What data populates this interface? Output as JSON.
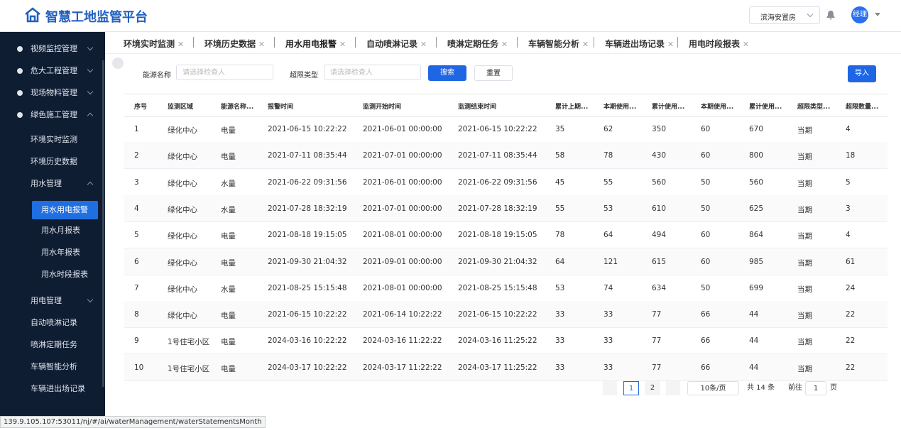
{
  "header": {
    "title": "智慧工地监管平台",
    "project": "滨海安置房",
    "user": "经理"
  },
  "sidebar": {
    "menu": [
      {
        "label": "视频监控管理"
      },
      {
        "label": "危大工程管理"
      },
      {
        "label": "现场物料管理"
      },
      {
        "label": "绿色施工管理",
        "children": [
          {
            "label": "环境实时监测"
          },
          {
            "label": "环境历史数据"
          },
          {
            "label": "用水管理",
            "children": [
              {
                "label": "用水用电报警"
              },
              {
                "label": "用水月报表"
              },
              {
                "label": "用水年报表"
              },
              {
                "label": "用水时段报表"
              }
            ]
          },
          {
            "label": "用电管理"
          },
          {
            "label": "自动喷淋记录"
          },
          {
            "label": "喷淋定期任务"
          },
          {
            "label": "车辆智能分析"
          },
          {
            "label": "车辆进出场记录"
          }
        ]
      }
    ]
  },
  "tabs": [
    "环境实时监测",
    "环境历史数据",
    "用水用电报警",
    "自动喷淋记录",
    "喷淋定期任务",
    "车辆智能分析",
    "车辆进出场记录",
    "用电时段报表"
  ],
  "filters": {
    "energy_label": "能源名称",
    "energy_placeholder": "请选择检查人",
    "type_label": "超限类型",
    "type_placeholder": "请选择检查人",
    "search": "搜索",
    "reset": "重置",
    "import": "导入"
  },
  "table": {
    "columns": [
      "序号",
      "监测区域",
      "能源名称...",
      "报警时间",
      "监测开始时间",
      "监测结束时间",
      "累计上期...",
      "本期使用...",
      "累计使用...",
      "本期使用...",
      "累计使用...",
      "超限类型...",
      "超限数量..."
    ],
    "rows": [
      [
        "1",
        "绿化中心",
        "电量",
        "2021-06-15 10:22:22",
        "2021-06-01 00:00:00",
        "2021-06-15 10:22:22",
        "35",
        "62",
        "350",
        "60",
        "670",
        "当期",
        "4"
      ],
      [
        "2",
        "绿化中心",
        "电量",
        "2021-07-11 08:35:44",
        "2021-07-01 00:00:00",
        "2021-07-11 08:35:44",
        "58",
        "78",
        "430",
        "60",
        "800",
        "当期",
        "18"
      ],
      [
        "3",
        "绿化中心",
        "水量",
        "2021-06-22 09:31:56",
        "2021-06-01 00:00:00",
        "2021-06-22 09:31:56",
        "45",
        "55",
        "560",
        "50",
        "560",
        "当期",
        "5"
      ],
      [
        "4",
        "绿化中心",
        "水量",
        "2021-07-28 18:32:19",
        "2021-07-01 00:00:00",
        "2021-07-28 18:32:19",
        "55",
        "53",
        "610",
        "50",
        "625",
        "当期",
        "3"
      ],
      [
        "5",
        "绿化中心",
        "电量",
        "2021-08-18 19:15:05",
        "2021-08-01 00:00:00",
        "2021-08-18 19:15:05",
        "78",
        "64",
        "494",
        "60",
        "864",
        "当期",
        "4"
      ],
      [
        "6",
        "绿化中心",
        "电量",
        "2021-09-30 21:04:32",
        "2021-09-01 00:00:00",
        "2021-09-30 21:04:32",
        "64",
        "121",
        "615",
        "60",
        "985",
        "当期",
        "61"
      ],
      [
        "7",
        "绿化中心",
        "水量",
        "2021-08-25 15:15:48",
        "2021-08-01 00:00:00",
        "2021-08-25 15:15:48",
        "53",
        "74",
        "634",
        "50",
        "699",
        "当期",
        "24"
      ],
      [
        "8",
        "绿化中心",
        "电量",
        "2021-06-15 10:22:22",
        "2021-06-14 10:22:22",
        "2021-06-15 10:22:22",
        "33",
        "33",
        "77",
        "66",
        "44",
        "当期",
        "22"
      ],
      [
        "9",
        "1号住宅小区",
        "电量",
        "2024-03-16 10:22:22",
        "2024-03-16 11:22:22",
        "2024-03-16 11:25:22",
        "33",
        "33",
        "77",
        "66",
        "44",
        "当期",
        "22"
      ],
      [
        "10",
        "1号住宅小区",
        "电量",
        "2024-03-17 10:22:22",
        "2024-03-17 11:22:22",
        "2024-03-17 11:25:22",
        "33",
        "33",
        "77",
        "66",
        "44",
        "当期",
        "22"
      ]
    ]
  },
  "pagination": {
    "pages": [
      "1",
      "2"
    ],
    "size": "10条/页",
    "total": "共 14 条",
    "goto": "前往",
    "current": "1",
    "unit": "页"
  },
  "status_url": "139.9.105.107:53011/nj/#/ai/waterManagement/waterStatementsMonth"
}
